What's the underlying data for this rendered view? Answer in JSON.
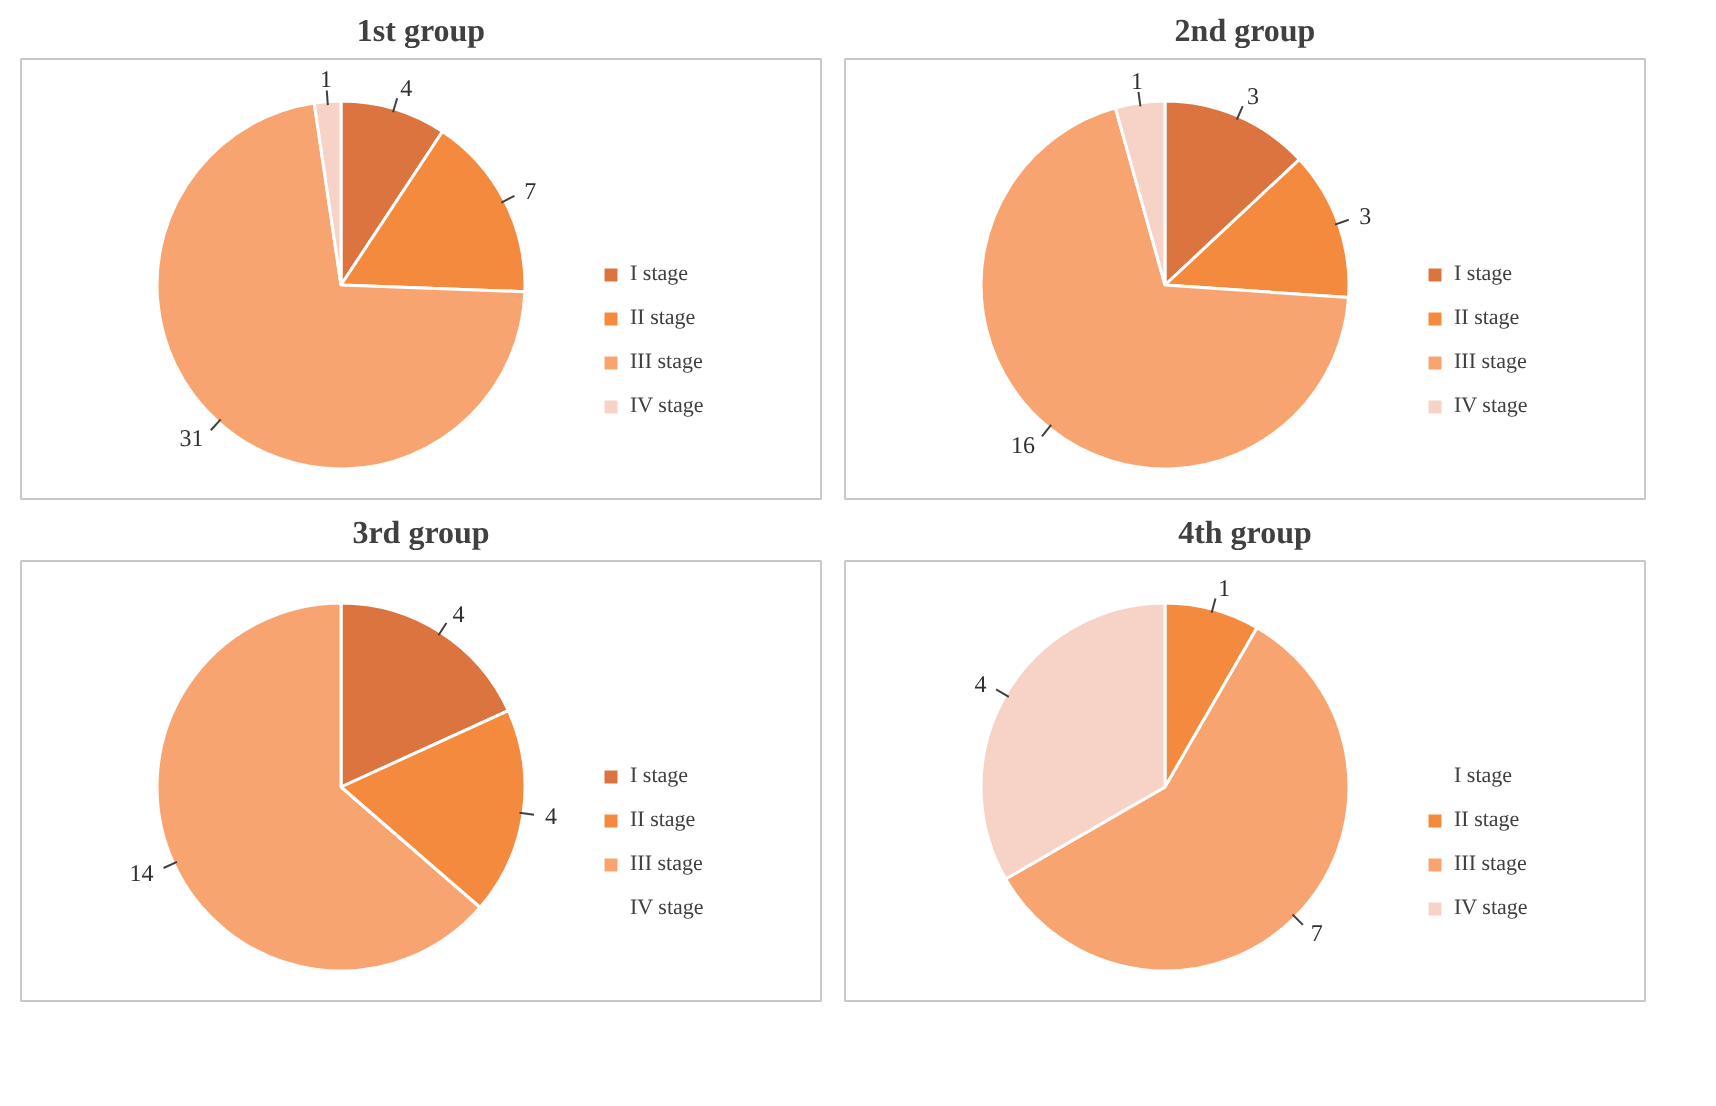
{
  "chart_data": [
    {
      "type": "pie",
      "title": "1st group",
      "categories": [
        "I stage",
        "II stage",
        "III stage",
        "IV stage"
      ],
      "values": [
        4,
        7,
        31,
        1
      ],
      "colors": [
        "#dc7440",
        "#f48a3e",
        "#f8a470",
        "#f6d3c6"
      ],
      "value_labels": [
        "4",
        "7",
        "31",
        "1"
      ],
      "legend": "right"
    },
    {
      "type": "pie",
      "title": "2nd group",
      "categories": [
        "I stage",
        "II stage",
        "III stage",
        "IV stage"
      ],
      "values": [
        3,
        3,
        16,
        1
      ],
      "colors": [
        "#dc7440",
        "#f48a3e",
        "#f8a470",
        "#f6d3c6"
      ],
      "value_labels": [
        "3",
        "3",
        "16",
        "1"
      ],
      "legend": "right"
    },
    {
      "type": "pie",
      "title": "3rd group",
      "categories": [
        "I stage",
        "II stage",
        "III stage",
        "IV stage"
      ],
      "values": [
        4,
        4,
        14,
        0
      ],
      "colors": [
        "#dc7440",
        "#f48a3e",
        "#f8a470",
        "#f6d3c6"
      ],
      "value_labels": [
        "4",
        "4",
        "14",
        null
      ],
      "legend": "right"
    },
    {
      "type": "pie",
      "title": "4th group",
      "categories": [
        "I stage",
        "II stage",
        "III stage",
        "IV stage"
      ],
      "values": [
        0,
        1,
        7,
        4
      ],
      "colors": [
        "#dc7440",
        "#f48a3e",
        "#f8a470",
        "#f6d3c6"
      ],
      "value_labels": [
        null,
        "1",
        "7",
        "4"
      ],
      "legend": "right"
    }
  ]
}
